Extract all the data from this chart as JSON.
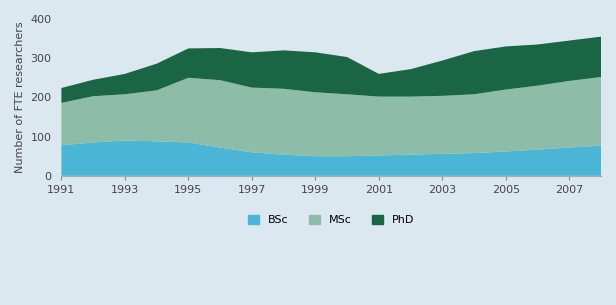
{
  "years": [
    1991,
    1992,
    1993,
    1994,
    1995,
    1996,
    1997,
    1998,
    1999,
    2000,
    2001,
    2002,
    2003,
    2004,
    2005,
    2006,
    2007,
    2008
  ],
  "bsc": [
    78,
    85,
    90,
    88,
    85,
    72,
    60,
    54,
    50,
    50,
    52,
    54,
    56,
    58,
    62,
    67,
    72,
    77
  ],
  "msc": [
    108,
    118,
    118,
    130,
    165,
    172,
    165,
    168,
    163,
    158,
    150,
    148,
    148,
    150,
    158,
    163,
    170,
    175
  ],
  "phd": [
    38,
    42,
    52,
    68,
    75,
    82,
    90,
    98,
    102,
    95,
    58,
    70,
    90,
    110,
    110,
    105,
    103,
    103
  ],
  "bsc_color": "#4ab5d5",
  "msc_color": "#8dbda8",
  "phd_color": "#1a6644",
  "background_color": "#dce8f0",
  "ylabel": "Number of FTE researchers",
  "ylim": [
    0,
    400
  ],
  "yticks": [
    0,
    100,
    200,
    300,
    400
  ],
  "xtick_years": [
    1991,
    1993,
    1995,
    1997,
    1999,
    2001,
    2003,
    2005,
    2007
  ],
  "legend_labels": [
    "BSc",
    "MSc",
    "PhD"
  ],
  "label_fontsize": 8,
  "tick_fontsize": 8
}
